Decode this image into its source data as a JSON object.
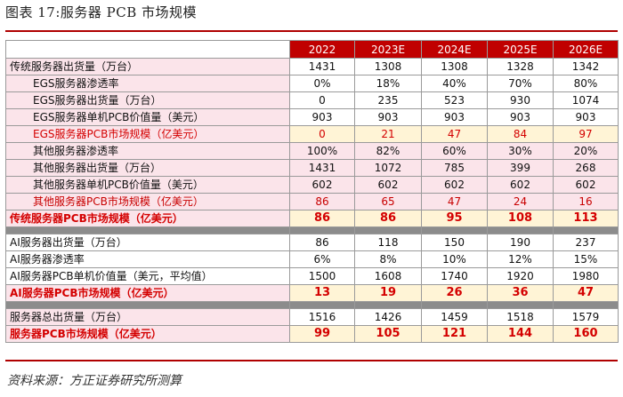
{
  "title": "图表 17:服务器 PCB 市场规模",
  "source": "资料来源：方正证券研究所测算",
  "table": {
    "years": [
      "2022",
      "2023E",
      "2024E",
      "2025E",
      "2026E"
    ],
    "section1": [
      {
        "label": "传统服务器出货量（万台）",
        "values": [
          "1431",
          "1308",
          "1308",
          "1328",
          "1342"
        ]
      },
      {
        "label": "EGS服务器渗透率",
        "values": [
          "0%",
          "18%",
          "40%",
          "70%",
          "80%"
        ]
      },
      {
        "label": "EGS服务器出货量（万台）",
        "values": [
          "0",
          "235",
          "523",
          "930",
          "1074"
        ]
      },
      {
        "label": "EGS服务器单机PCB价值量（美元）",
        "values": [
          "903",
          "903",
          "903",
          "903",
          "903"
        ]
      },
      {
        "label": "EGS服务器PCB市场规模（亿美元）",
        "values": [
          "0",
          "21",
          "47",
          "84",
          "97"
        ]
      },
      {
        "label": "其他服务器渗透率",
        "values": [
          "100%",
          "82%",
          "60%",
          "30%",
          "20%"
        ]
      },
      {
        "label": "其他服务器出货量（万台）",
        "values": [
          "1431",
          "1072",
          "785",
          "399",
          "268"
        ]
      },
      {
        "label": "其他服务器单机PCB价值量（美元）",
        "values": [
          "602",
          "602",
          "602",
          "602",
          "602"
        ]
      },
      {
        "label": "其他服务器PCB市场规模（亿美元）",
        "values": [
          "86",
          "65",
          "47",
          "24",
          "16"
        ]
      },
      {
        "label": "传统服务器PCB市场规模（亿美元）",
        "values": [
          "86",
          "86",
          "95",
          "108",
          "113"
        ]
      }
    ],
    "section2": [
      {
        "label": "AI服务器出货量（万台）",
        "values": [
          "86",
          "118",
          "150",
          "190",
          "237"
        ]
      },
      {
        "label": "AI服务器渗透率",
        "values": [
          "6%",
          "8%",
          "10%",
          "12%",
          "15%"
        ]
      },
      {
        "label": "AI服务器PCB单机价值量（美元，平均值）",
        "values": [
          "1500",
          "1608",
          "1740",
          "1920",
          "1980"
        ]
      },
      {
        "label": "AI服务器PCB市场规模（亿美元）",
        "values": [
          "13",
          "19",
          "26",
          "36",
          "47"
        ]
      }
    ],
    "section3": [
      {
        "label": "服务器总出货量（万台）",
        "values": [
          "1516",
          "1426",
          "1459",
          "1518",
          "1579"
        ]
      },
      {
        "label": "服务器PCB市场规模（亿美元）",
        "values": [
          "99",
          "105",
          "121",
          "144",
          "160"
        ]
      }
    ]
  }
}
